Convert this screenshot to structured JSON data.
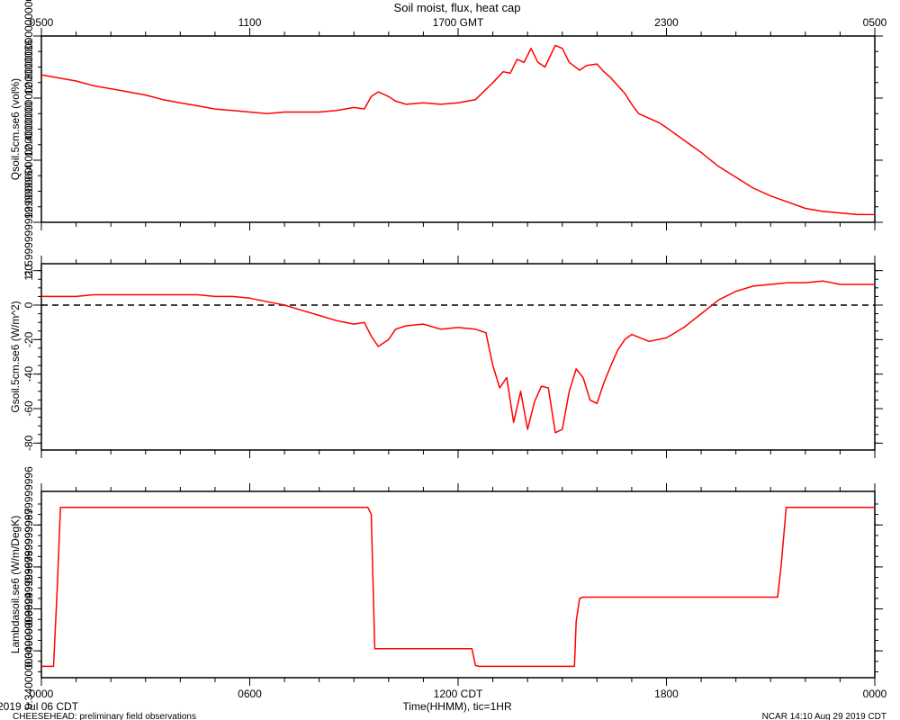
{
  "title": "Soil moist, flux, heat cap",
  "top_axis": {
    "ticks": [
      "0500",
      "1100",
      "1700 GMT",
      "2300",
      "0500"
    ]
  },
  "bottom_axis": {
    "ticks": [
      "0000",
      "0600",
      "1200 CDT",
      "1800",
      "0000"
    ],
    "label": "Time(HHMM), tic=1HR"
  },
  "footer": {
    "date": "2019 Jul 06 CDT",
    "left": "CHEESEHEAD: preliminary field observations",
    "right": "NCAR 14:10 Aug 29 2019 CDT"
  },
  "colors": {
    "series": "#ff0000",
    "axes": "#000000",
    "zero_line": "#000000"
  },
  "chart_data": [
    {
      "type": "line",
      "ylabel": "Qsoil.5cm.se6 (vol%)",
      "ylim": [
        11.6,
        12.8
      ],
      "yticks": [
        11.6,
        12.0,
        12.4,
        12.8
      ],
      "xlim": [
        0,
        24
      ],
      "series": [
        {
          "x": [
            0,
            0.5,
            1,
            1.5,
            2,
            2.5,
            3,
            3.5,
            4,
            4.5,
            5,
            5.5,
            6,
            6.5,
            7,
            7.5,
            8,
            8.5,
            9,
            9.3,
            9.5,
            9.7,
            10,
            10.2,
            10.5,
            11,
            11.5,
            12,
            12.5,
            13,
            13.3,
            13.5,
            13.7,
            13.9,
            14.1,
            14.3,
            14.5,
            14.8,
            15,
            15.2,
            15.5,
            15.7,
            16,
            16.2,
            16.4,
            16.6,
            16.8,
            17,
            17.2,
            17.5,
            17.8,
            18,
            18.5,
            19,
            19.5,
            20,
            20.5,
            21,
            21.5,
            22,
            22.5,
            23,
            23.5,
            24
          ],
          "y": [
            12.55,
            12.53,
            12.51,
            12.48,
            12.46,
            12.44,
            12.42,
            12.39,
            12.37,
            12.35,
            12.33,
            12.32,
            12.31,
            12.3,
            12.31,
            12.31,
            12.31,
            12.32,
            12.34,
            12.33,
            12.41,
            12.44,
            12.41,
            12.38,
            12.36,
            12.37,
            12.36,
            12.37,
            12.39,
            12.5,
            12.57,
            12.56,
            12.65,
            12.63,
            12.72,
            12.63,
            12.6,
            12.74,
            12.72,
            12.63,
            12.58,
            12.61,
            12.62,
            12.57,
            12.53,
            12.48,
            12.43,
            12.36,
            12.3,
            12.27,
            12.24,
            12.21,
            12.13,
            12.05,
            11.96,
            11.89,
            11.82,
            11.77,
            11.73,
            11.69,
            11.67,
            11.66,
            11.65,
            11.65
          ]
        }
      ]
    },
    {
      "type": "line",
      "ylabel": "Gsoil.5cm.se6 (W/m^2)",
      "ylim": [
        -84,
        24
      ],
      "yticks": [
        20,
        0,
        -20,
        -40,
        -60,
        -80
      ],
      "xlim": [
        0,
        24
      ],
      "reference_line": {
        "y": 0,
        "style": "dashed"
      },
      "series": [
        {
          "x": [
            0,
            0.5,
            1,
            1.5,
            2,
            2.5,
            3,
            3.5,
            4,
            4.5,
            5,
            5.5,
            6,
            6.5,
            7,
            7.5,
            8,
            8.5,
            9,
            9.3,
            9.5,
            9.7,
            10,
            10.2,
            10.5,
            11,
            11.5,
            12,
            12.5,
            12.8,
            13,
            13.2,
            13.4,
            13.6,
            13.8,
            14,
            14.2,
            14.4,
            14.6,
            14.8,
            15,
            15.2,
            15.4,
            15.6,
            15.8,
            16,
            16.2,
            16.4,
            16.6,
            16.8,
            17,
            17.5,
            18,
            18.5,
            19,
            19.5,
            20,
            20.5,
            21,
            21.5,
            22,
            22.5,
            23,
            23.5,
            24
          ],
          "y": [
            5,
            5,
            5,
            6,
            6,
            6,
            6,
            6,
            6,
            6,
            5,
            5,
            4,
            2,
            0,
            -3,
            -6,
            -9,
            -11,
            -10,
            -18,
            -24,
            -20,
            -14,
            -12,
            -11,
            -14,
            -13,
            -14,
            -16,
            -35,
            -48,
            -42,
            -68,
            -50,
            -72,
            -56,
            -47,
            -48,
            -74,
            -72,
            -50,
            -37,
            -42,
            -55,
            -57,
            -45,
            -35,
            -26,
            -20,
            -17,
            -21,
            -19,
            -13,
            -5,
            3,
            8,
            11,
            12,
            13,
            13,
            14,
            12,
            12,
            12
          ]
        }
      ]
    },
    {
      "type": "line",
      "ylabel": "Lambdasoil.se6 (W/m/DegK)",
      "ylim": [
        0.3336,
        0.378
      ],
      "yticks": [
        0.34,
        0.35,
        0.36,
        0.37
      ],
      "xlim": [
        0,
        24
      ],
      "series": [
        {
          "x": [
            0,
            0.35,
            0.45,
            0.55,
            2,
            4,
            6,
            8,
            9.4,
            9.5,
            9.6,
            10,
            11,
            12,
            12.4,
            12.5,
            12.6,
            13,
            14,
            15,
            15.35,
            15.4,
            15.5,
            15.6,
            16,
            18,
            20,
            21.2,
            21.3,
            21.45,
            22,
            23,
            24
          ],
          "y": [
            0.3363,
            0.3363,
            0.354,
            0.3742,
            0.3742,
            0.3742,
            0.3742,
            0.3742,
            0.3742,
            0.3725,
            0.3405,
            0.3405,
            0.3405,
            0.3405,
            0.3405,
            0.3365,
            0.3363,
            0.3363,
            0.3363,
            0.3363,
            0.3363,
            0.347,
            0.3525,
            0.3528,
            0.3528,
            0.3528,
            0.3528,
            0.3528,
            0.36,
            0.3742,
            0.3742,
            0.3742,
            0.3742
          ]
        }
      ]
    }
  ]
}
